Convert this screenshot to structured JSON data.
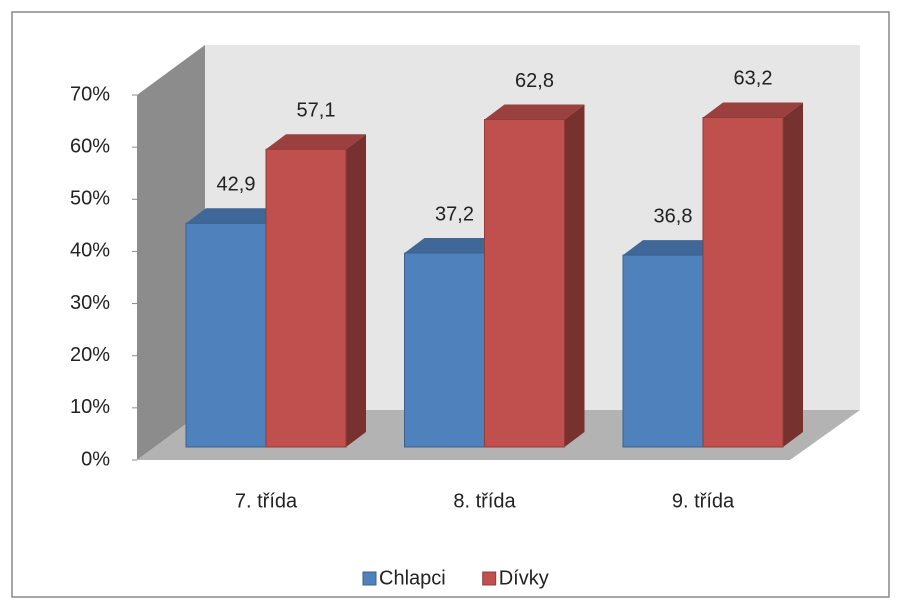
{
  "chart_data": {
    "type": "bar3d",
    "categories": [
      "7. třída",
      "8. třída",
      "9. třída"
    ],
    "series": [
      {
        "name": "Chlapci",
        "color": "#4f81bd",
        "values": [
          42.9,
          37.2,
          36.8
        ],
        "value_labels": [
          "42,9",
          "37,2",
          "36,8"
        ]
      },
      {
        "name": "Dívky",
        "color": "#c0504d",
        "values": [
          57.1,
          62.8,
          63.2
        ],
        "value_labels": [
          "57,1",
          "62,8",
          "63,2"
        ]
      }
    ],
    "ylim": [
      0,
      70
    ],
    "yticks": [
      {
        "value": 0,
        "label": "0%"
      },
      {
        "value": 10,
        "label": "10%"
      },
      {
        "value": 20,
        "label": "20%"
      },
      {
        "value": 30,
        "label": "30%"
      },
      {
        "value": 40,
        "label": "40%"
      },
      {
        "value": 50,
        "label": "50%"
      },
      {
        "value": 60,
        "label": "60%"
      },
      {
        "value": 70,
        "label": "70%"
      }
    ],
    "legend": "bottom"
  }
}
